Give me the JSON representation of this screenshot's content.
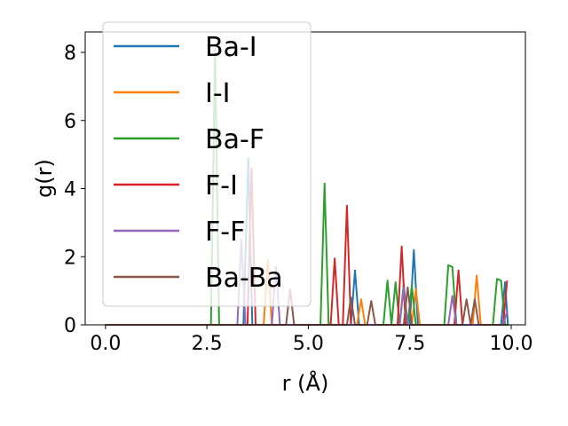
{
  "chart_data": {
    "type": "line",
    "title": "",
    "xlabel": "r (Å)",
    "ylabel": "g(r)",
    "xlim": [
      -0.5,
      10.35
    ],
    "ylim": [
      0,
      8.6
    ],
    "xticks": [
      0.0,
      2.5,
      5.0,
      7.5,
      10.0
    ],
    "xtick_labels": [
      "0.0",
      "2.5",
      "5.0",
      "7.5",
      "10.0"
    ],
    "yticks": [
      0,
      2,
      4,
      6,
      8
    ],
    "ytick_labels": [
      "0",
      "2",
      "4",
      "6",
      "8"
    ],
    "legend_position": "upper-left",
    "grid": false,
    "series": [
      {
        "name": "Ba-I",
        "color": "#1f77b4",
        "x": [
          0,
          3.4,
          3.52,
          3.62,
          3.72,
          6.05,
          6.15,
          6.25,
          6.35,
          7.5,
          7.6,
          7.7,
          9.75,
          9.85,
          9.92
        ],
        "y": [
          0,
          0,
          4.9,
          0,
          0,
          0,
          1.6,
          0,
          0,
          0,
          2.2,
          0,
          0,
          1.25,
          0
        ]
      },
      {
        "name": "I-I",
        "color": "#ff7f0e",
        "x": [
          0,
          3.9,
          4.0,
          4.1,
          6.2,
          6.3,
          6.4,
          7.55,
          7.65,
          7.75,
          9.05,
          9.15,
          9.25,
          9.9
        ],
        "y": [
          0,
          0,
          1.9,
          0,
          0,
          0.75,
          0,
          0,
          1.05,
          0,
          0,
          1.45,
          0,
          0
        ]
      },
      {
        "name": "Ba-F",
        "color": "#2ca02c",
        "x": [
          0,
          2.6,
          2.7,
          2.8,
          5.3,
          5.4,
          5.5,
          6.85,
          6.95,
          7.05,
          7.15,
          7.25,
          7.35,
          7.45,
          7.55,
          7.65,
          7.75,
          8.35,
          8.45,
          8.55,
          8.65,
          9.55,
          9.65,
          9.75,
          9.85,
          9.95
        ],
        "y": [
          0,
          0,
          8.1,
          0,
          0,
          4.15,
          0,
          0,
          1.3,
          0,
          1.25,
          0,
          1.2,
          0,
          1.15,
          0,
          0,
          0,
          1.75,
          1.7,
          0,
          0,
          1.35,
          1.3,
          0,
          0
        ]
      },
      {
        "name": "F-I",
        "color": "#d62728",
        "x": [
          0,
          3.5,
          3.6,
          3.7,
          5.55,
          5.65,
          5.75,
          5.85,
          5.95,
          6.05,
          7.2,
          7.3,
          7.4,
          8.6,
          8.7,
          8.8,
          9.8,
          9.9
        ],
        "y": [
          0,
          0,
          4.6,
          0,
          0,
          1.95,
          0,
          0,
          3.5,
          0,
          0,
          2.3,
          0,
          0,
          1.6,
          0,
          0,
          1.3
        ]
      },
      {
        "name": "F-F",
        "color": "#9467bd",
        "x": [
          0,
          3.25,
          3.35,
          3.45,
          4.1,
          4.2,
          4.3,
          7.25,
          7.35,
          7.45,
          8.45,
          8.55,
          8.65,
          9.8,
          9.9
        ],
        "y": [
          0,
          0,
          2.5,
          0,
          0,
          1.7,
          0,
          0,
          1.1,
          0,
          0,
          0.85,
          0,
          0,
          0.4
        ]
      },
      {
        "name": "Ba-Ba",
        "color": "#8c564b",
        "x": [
          0,
          4.45,
          4.55,
          4.65,
          5.95,
          6.05,
          6.15,
          6.45,
          6.55,
          6.65,
          7.35,
          7.45,
          7.55,
          8.8,
          8.9,
          9.0,
          9.1,
          9.2,
          9.3,
          9.9
        ],
        "y": [
          0,
          0,
          1.05,
          0,
          0,
          0.8,
          0,
          0,
          0.7,
          0,
          0,
          1.1,
          0,
          0,
          0.75,
          0,
          0.75,
          0,
          0,
          0
        ]
      }
    ]
  }
}
